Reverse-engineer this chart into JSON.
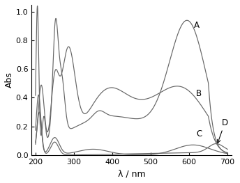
{
  "xlabel": "λ / nm",
  "ylabel": "Abs",
  "xlim": [
    190,
    710
  ],
  "ylim": [
    0.0,
    1.05
  ],
  "xticks": [
    200,
    300,
    400,
    500,
    600,
    700
  ],
  "yticks": [
    0.0,
    0.2,
    0.4,
    0.6,
    0.8,
    1.0
  ],
  "line_color": "#666666",
  "background_color": "#ffffff",
  "label_A": "A",
  "label_B": "B",
  "label_C": "C",
  "label_D": "D"
}
